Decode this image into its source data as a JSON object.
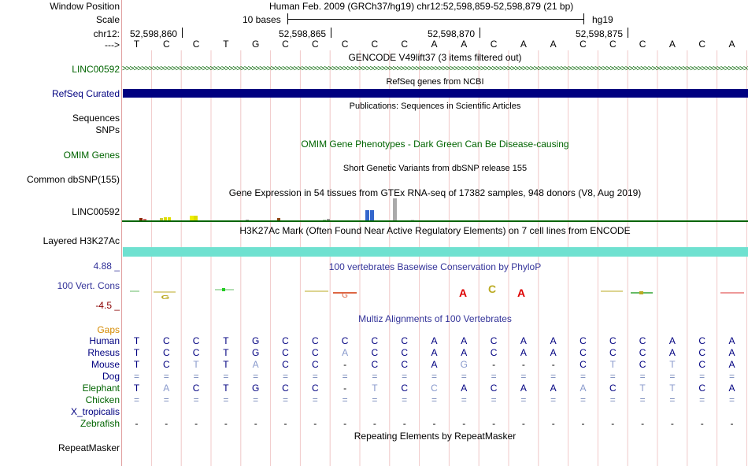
{
  "colors": {
    "navy": "#000080",
    "green_dark": "#006400",
    "conservation_blue": "#333399",
    "gaps_orange": "#D58A00",
    "h3k27ac_teal": "#6FE1D0",
    "grid_pink": "#F0C8C8"
  },
  "header": {
    "window_position_label": "Window Position",
    "window_position_value": "Human Feb. 2009 (GRCh37/hg19)   chr12:52,598,859-52,598,879 (21 bp)",
    "scale_label": "Scale",
    "scale_bases": "10 bases",
    "scale_assembly": "hg19",
    "chr_label": "chr12:",
    "chr_ticks": [
      "52,598,860",
      "52,598,865",
      "52,598,870",
      "52,598,875"
    ],
    "strand_label": "--->",
    "bases": [
      "T",
      "C",
      "C",
      "T",
      "G",
      "C",
      "C",
      "C",
      "C",
      "C",
      "A",
      "A",
      "C",
      "A",
      "A",
      "C",
      "C",
      "C",
      "A",
      "C",
      "A"
    ]
  },
  "tracks": {
    "gencode": {
      "title": "GENCODE V49lift37 (3 items filtered out)",
      "label": "LINC00592",
      "chevrons": ">>>>>>>>>>>>>>>>>>>>>>>>>>>>>>>>>>>>>>>>>>>>>>>>>>>>>>>>>>>>>>>>>>>>>>>>>>>>>>>>>>>>>>>>>>>>>>>>>>>>>>>>>>>>>>>>>>>>>>>>>>>>>>>>>>>>>>>>>>>>>>>>>>>>>>>>>>>>>>>>>>>>>>>>>>>>>>>>>>>>>>>>>>>>>>>>>>>>>>>>>>>>>>>>>>>>>>>"
    },
    "refseq": {
      "title": "RefSeq genes from NCBI",
      "label": "RefSeq Curated"
    },
    "publications": {
      "title": "Publications: Sequences in Scientific Articles",
      "labels": [
        "Sequences",
        "SNPs"
      ]
    },
    "omim": {
      "title": "OMIM Gene Phenotypes - Dark Green Can Be Disease-causing",
      "label": "OMIM Genes"
    },
    "dbsnp": {
      "title": "Short Genetic Variants from dbSNP release 155",
      "label": "Common dbSNP(155)"
    },
    "gtex": {
      "title": "Gene Expression in 54 tissues from GTEx RNA-seq of 17382 samples, 948 donors (V8, Aug 2019)",
      "label": "LINC00592"
    },
    "h3k27ac": {
      "title": "H3K27Ac Mark (Often Found Near Active Regulatory Elements) on 7 cell lines from ENCODE",
      "label": "Layered H3K27Ac"
    },
    "phylop": {
      "title": "100 vertebrates Basewise Conservation by PhyloP",
      "label": "100 Vert. Cons",
      "max_label": "4.88 _",
      "min_label": "-4.5 _"
    },
    "multiz": {
      "title": "Multiz Alignments of 100 Vertebrates",
      "gaps_label": "Gaps",
      "species": [
        {
          "name": "Human",
          "bases": [
            "T",
            "C",
            "C",
            "T",
            "G",
            "C",
            "C",
            "C",
            "C",
            "C",
            "A",
            "A",
            "C",
            "A",
            "A",
            "C",
            "C",
            "C",
            "A",
            "C",
            "A"
          ]
        },
        {
          "name": "Rhesus",
          "bases": [
            "T",
            "C",
            "C",
            "T",
            "G",
            "C",
            "C",
            "A",
            "C",
            "C",
            "A",
            "A",
            "C",
            "A",
            "A",
            "C",
            "C",
            "C",
            "A",
            "C",
            "A"
          ]
        },
        {
          "name": "Mouse",
          "bases": [
            "T",
            "C",
            "T",
            "T",
            "A",
            "C",
            "C",
            "-",
            "C",
            "C",
            "A",
            "G",
            "-",
            "-",
            "-",
            "C",
            "T",
            "C",
            "T",
            "C",
            "A"
          ]
        },
        {
          "name": "Dog",
          "bases": [
            "=",
            "=",
            "=",
            "=",
            "=",
            "=",
            "=",
            "=",
            "=",
            "=",
            "=",
            "=",
            "=",
            "=",
            "=",
            "=",
            "=",
            "=",
            "=",
            "=",
            "="
          ]
        },
        {
          "name": "Elephant",
          "bases": [
            "T",
            "A",
            "C",
            "T",
            "G",
            "C",
            "C",
            "-",
            "T",
            "C",
            "C",
            "A",
            "C",
            "A",
            "A",
            "A",
            "C",
            "T",
            "T",
            "C",
            "A"
          ]
        },
        {
          "name": "Chicken",
          "bases": [
            "=",
            "=",
            "=",
            "=",
            "=",
            "=",
            "=",
            "=",
            "=",
            "=",
            "=",
            "=",
            "=",
            "=",
            "=",
            "=",
            "=",
            "=",
            "=",
            "=",
            "="
          ]
        },
        {
          "name": "X_tropicalis",
          "bases": [
            "",
            "",
            "",
            "",
            "",
            "",
            "",
            "",
            "",
            "",
            "",
            "",
            "",
            "",
            "",
            "",
            "",
            "",
            "",
            "",
            ""
          ]
        },
        {
          "name": "Zebrafish",
          "bases": [
            "-",
            "-",
            "-",
            "-",
            "-",
            "-",
            "-",
            "-",
            "-",
            "-",
            "-",
            "-",
            "-",
            "-",
            "-",
            "-",
            "-",
            "-",
            "-",
            "-",
            "-"
          ]
        }
      ]
    },
    "repeatmasker": {
      "title": "Repeating Elements by RepeatMasker",
      "label": "RepeatMasker"
    }
  }
}
